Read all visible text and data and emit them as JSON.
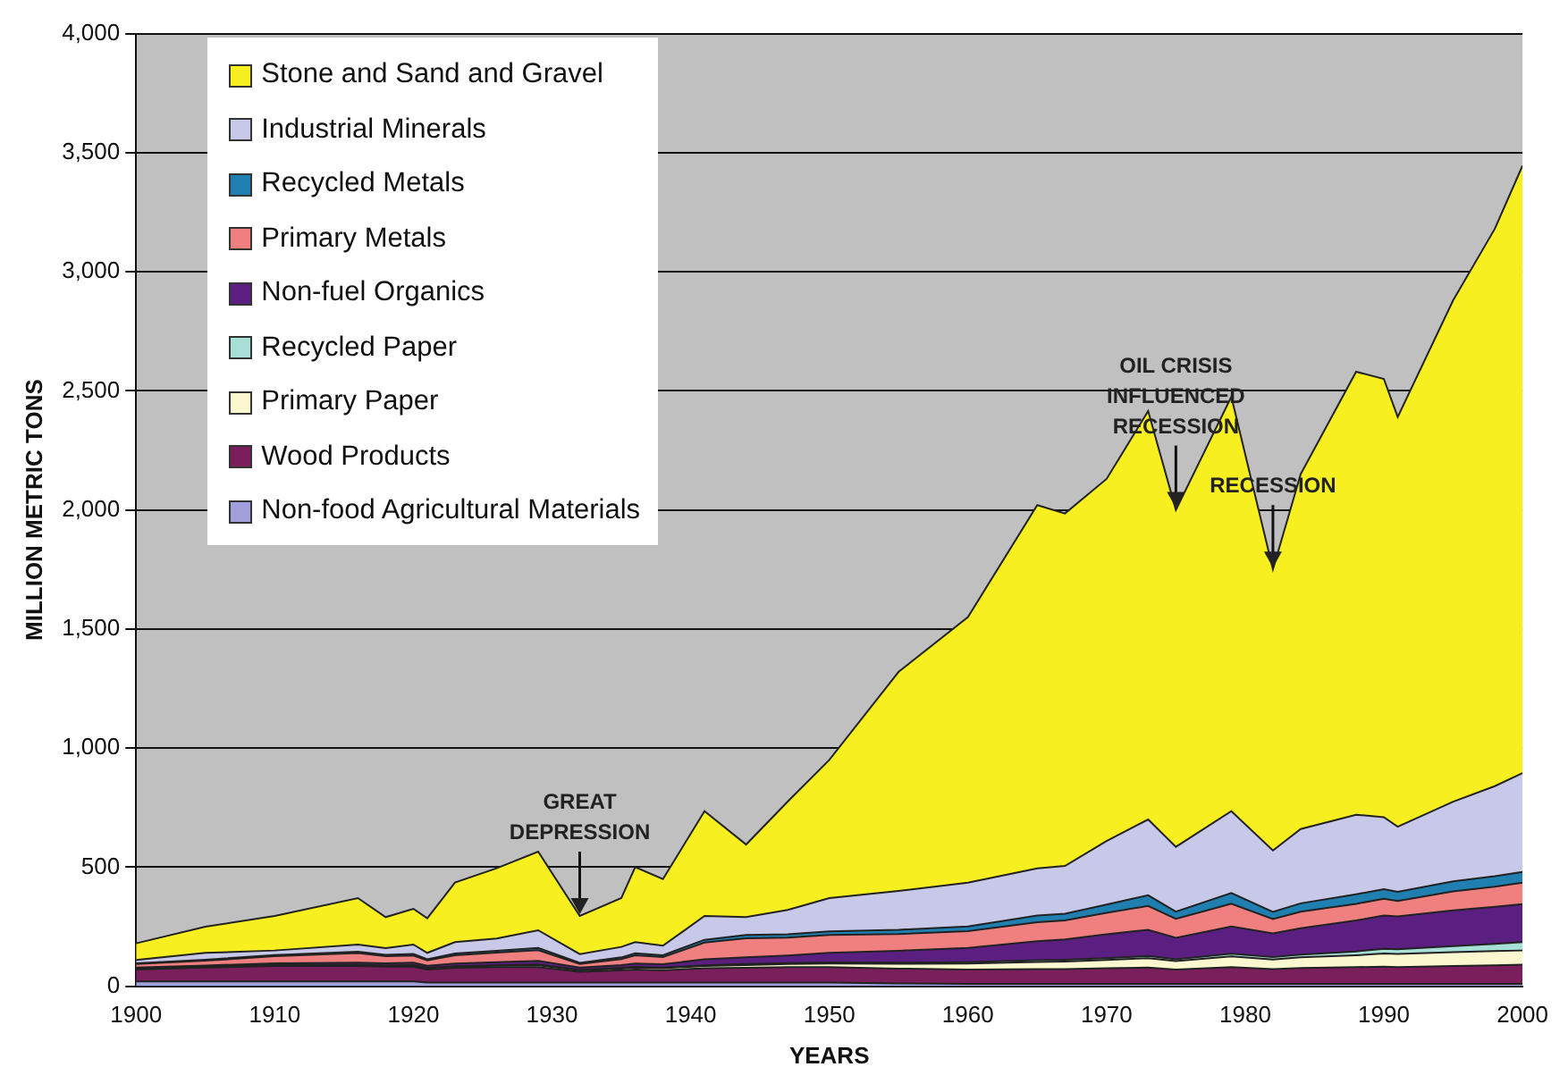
{
  "chart_data": {
    "type": "area",
    "stacked": true,
    "xlabel": "YEARS",
    "ylabel": "MILLION METRIC TONS",
    "x": [
      1900,
      1905,
      1910,
      1916,
      1918,
      1920,
      1921,
      1923,
      1926,
      1929,
      1932,
      1935,
      1936,
      1938,
      1941,
      1944,
      1947,
      1950,
      1955,
      1960,
      1965,
      1967,
      1970,
      1973,
      1975,
      1979,
      1982,
      1984,
      1988,
      1990,
      1991,
      1995,
      1998,
      2000
    ],
    "series": [
      {
        "name": "Non-food Agricultural Materials",
        "color": "#9f9fdc",
        "values": [
          20,
          20,
          20,
          20,
          20,
          20,
          15,
          15,
          15,
          15,
          15,
          15,
          15,
          15,
          15,
          15,
          15,
          15,
          12,
          10,
          10,
          10,
          10,
          10,
          10,
          10,
          10,
          10,
          10,
          10,
          10,
          10,
          10,
          10
        ]
      },
      {
        "name": "Wood Products",
        "color": "#7a1f5c",
        "values": [
          50,
          58,
          65,
          65,
          62,
          62,
          55,
          62,
          65,
          65,
          45,
          52,
          55,
          52,
          60,
          62,
          65,
          65,
          62,
          60,
          62,
          62,
          65,
          68,
          60,
          70,
          62,
          66,
          70,
          72,
          70,
          75,
          78,
          80
        ]
      },
      {
        "name": "Primary Paper",
        "color": "#fbf8d0",
        "values": [
          2,
          2,
          3,
          4,
          4,
          5,
          5,
          5,
          6,
          8,
          6,
          7,
          8,
          8,
          10,
          12,
          13,
          15,
          20,
          25,
          30,
          32,
          35,
          40,
          35,
          45,
          40,
          45,
          50,
          55,
          55,
          58,
          60,
          60
        ]
      },
      {
        "name": "Recycled Paper",
        "color": "#a8e0d8",
        "values": [
          1,
          1,
          1,
          1,
          1,
          2,
          2,
          2,
          2,
          3,
          2,
          3,
          3,
          3,
          3,
          4,
          4,
          5,
          5,
          6,
          7,
          7,
          8,
          9,
          8,
          11,
          10,
          12,
          16,
          20,
          20,
          25,
          30,
          35
        ]
      },
      {
        "name": "Non-fuel Organics",
        "color": "#5a1f80",
        "values": [
          5,
          6,
          7,
          9,
          9,
          10,
          9,
          11,
          13,
          15,
          10,
          12,
          14,
          14,
          25,
          28,
          32,
          40,
          50,
          60,
          80,
          85,
          100,
          110,
          90,
          115,
          100,
          110,
          130,
          140,
          138,
          150,
          155,
          160
        ]
      },
      {
        "name": "Primary Metals",
        "color": "#f08080",
        "values": [
          15,
          20,
          30,
          40,
          30,
          30,
          22,
          35,
          40,
          45,
          15,
          25,
          35,
          30,
          70,
          80,
          75,
          75,
          70,
          70,
          80,
          80,
          90,
          100,
          80,
          95,
          60,
          70,
          70,
          70,
          65,
          80,
          85,
          90
        ]
      },
      {
        "name": "Recycled Metals",
        "color": "#1f7fb0",
        "values": [
          3,
          4,
          5,
          6,
          6,
          6,
          5,
          7,
          8,
          10,
          5,
          7,
          8,
          8,
          12,
          14,
          14,
          15,
          18,
          20,
          28,
          28,
          35,
          45,
          30,
          45,
          30,
          35,
          40,
          40,
          38,
          42,
          44,
          45
        ]
      },
      {
        "name": "Industrial Minerals",
        "color": "#c8c8e8",
        "values": [
          14,
          29,
          19,
          30,
          28,
          40,
          27,
          48,
          51,
          74,
          37,
          44,
          47,
          40,
          100,
          75,
          102,
          140,
          163,
          184,
          198,
          201,
          267,
          318,
          272,
          344,
          258,
          312,
          334,
          303,
          274,
          335,
          378,
          415
        ]
      },
      {
        "name": "Stone and Sand and Gravel",
        "color": "#f7ef1f",
        "values": [
          70,
          110,
          145,
          195,
          130,
          150,
          145,
          250,
          295,
          330,
          160,
          205,
          315,
          280,
          440,
          305,
          455,
          580,
          920,
          1115,
          1525,
          1480,
          1520,
          1715,
          1415,
          1740,
          1180,
          1490,
          1860,
          1840,
          1720,
          2105,
          2340,
          2550
        ]
      }
    ],
    "xlim": [
      1900,
      2000
    ],
    "xticks": [
      1900,
      1910,
      1920,
      1930,
      1940,
      1950,
      1960,
      1970,
      1980,
      1990,
      2000
    ],
    "ylim": [
      0,
      4000
    ],
    "yticks": [
      0,
      {
        "value": 500,
        "label": "500"
      },
      {
        "value": 1000,
        "label": "1,000"
      },
      {
        "value": 1500,
        "label": "1,500"
      },
      {
        "value": 2000,
        "label": "2,000"
      },
      {
        "value": 2500,
        "label": "2,500"
      },
      {
        "value": 3000,
        "label": "3,000"
      },
      {
        "value": 3500,
        "label": "3,500"
      },
      {
        "value": 4000,
        "label": "4,000"
      }
    ],
    "grid": "y",
    "legend": "top left",
    "annotations": [
      {
        "text": "GREAT DEPRESSION",
        "x": 1932,
        "y": 295
      },
      {
        "text": "OIL CRISIS INFLUENCED RECESSION",
        "x": 1975,
        "y": 2000
      },
      {
        "text": "RECESSION",
        "x": 1982,
        "y": 1750
      }
    ]
  }
}
